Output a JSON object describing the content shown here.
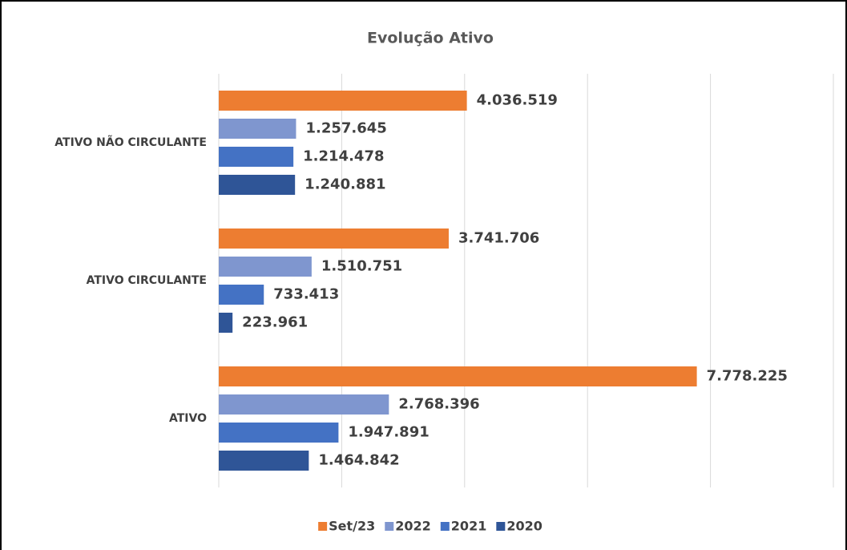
{
  "chart_data": {
    "type": "bar",
    "orientation": "horizontal",
    "title": "Evolução Ativo",
    "categories": [
      "ATIVO NÃO CIRCULANTE",
      "ATIVO CIRCULANTE",
      "ATIVO"
    ],
    "series": [
      {
        "name": "Set/23",
        "color": "#ed7d31",
        "values": [
          4036519,
          3741706,
          7778225
        ],
        "value_labels": [
          "4.036.519",
          "3.741.706",
          "7.778.225"
        ]
      },
      {
        "name": "2022",
        "color": "#7f96cf",
        "values": [
          1257645,
          1510751,
          2768396
        ],
        "value_labels": [
          "1.257.645",
          "1.510.751",
          "2.768.396"
        ]
      },
      {
        "name": "2021",
        "color": "#4472c4",
        "values": [
          1214478,
          733413,
          1947891
        ],
        "value_labels": [
          "1.214.478",
          "733.413",
          "1.947.891"
        ]
      },
      {
        "name": "2020",
        "color": "#2f5597",
        "values": [
          1240881,
          223961,
          1464842
        ],
        "value_labels": [
          "1.240.881",
          "223.961",
          "1.464.842"
        ]
      }
    ],
    "xlim": [
      0,
      10000000
    ],
    "xticks": [
      0,
      2000000,
      4000000,
      6000000,
      8000000,
      10000000
    ],
    "grid": true,
    "legend": "bottom"
  }
}
